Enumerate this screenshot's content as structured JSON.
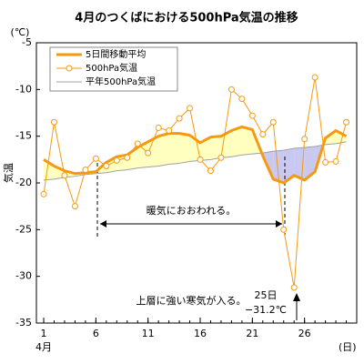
{
  "chart_data": {
    "type": "line",
    "title": "4月のつくばにおける500hPa気温の推移",
    "y_label": "気温",
    "y_unit": "(℃)",
    "x_unit": "(日)",
    "x_month": "4月",
    "x": [
      1,
      2,
      3,
      4,
      5,
      6,
      7,
      8,
      9,
      10,
      11,
      12,
      13,
      14,
      15,
      16,
      17,
      18,
      19,
      20,
      21,
      22,
      23,
      24,
      25,
      26,
      27,
      28,
      29,
      30
    ],
    "xlim": [
      0.3,
      31
    ],
    "xticks": [
      1,
      6,
      11,
      16,
      21,
      26
    ],
    "ylim": [
      -35,
      -5
    ],
    "yticks": [
      -5,
      -10,
      -15,
      -20,
      -25,
      -30,
      -35
    ],
    "legend": "upper left",
    "series": [
      {
        "name": "5日間移動平均",
        "color": "#f59a10",
        "width": 3,
        "marker": false,
        "values": [
          -17.5,
          -18.2,
          -18.7,
          -19.0,
          -18.9,
          -18.8,
          -17.8,
          -17.2,
          -17.0,
          -16.2,
          -15.6,
          -15.0,
          -14.7,
          -14.7,
          -14.9,
          -15.7,
          -15.1,
          -15.0,
          -14.4,
          -14.0,
          -14.3,
          -17.1,
          -19.6,
          -20.0,
          -19.2,
          -19.7,
          -18.8,
          -15.2,
          -14.4,
          -15.0
        ]
      },
      {
        "name": "500hPa気温",
        "color": "#f59a10",
        "width": 1,
        "marker": true,
        "values": [
          -21.2,
          -13.5,
          -19.2,
          -22.5,
          -18.6,
          -17.4,
          -18.2,
          -17.6,
          -17.3,
          -15.8,
          -16.8,
          -14.1,
          -14.4,
          -13.1,
          -12.0,
          -17.5,
          -18.7,
          -17.3,
          -10.0,
          -11.0,
          -12.8,
          -14.8,
          -13.5,
          -25.0,
          -31.2,
          -15.3,
          -8.7,
          -17.8,
          -17.7,
          -13.5
        ]
      },
      {
        "name": "平年500hPa気温",
        "color": "#a0a0a0",
        "width": 1,
        "marker": false,
        "values": [
          -19.7,
          -19.6,
          -19.4,
          -19.3,
          -19.1,
          -19.0,
          -18.9,
          -18.7,
          -18.6,
          -18.4,
          -18.3,
          -18.2,
          -18.0,
          -17.9,
          -17.7,
          -17.6,
          -17.5,
          -17.3,
          -17.2,
          -17.0,
          -16.9,
          -16.8,
          -16.6,
          -16.5,
          -16.3,
          -16.2,
          -16.1,
          -15.9,
          -15.8,
          -15.6
        ]
      }
    ],
    "fill_above_color": "#ffffc0",
    "fill_below_color": "#c8c8f0",
    "annotations": [
      "暖気におおわれる。",
      "上層に強い寒気が入る。",
      "25日",
      "−31.2℃"
    ]
  }
}
